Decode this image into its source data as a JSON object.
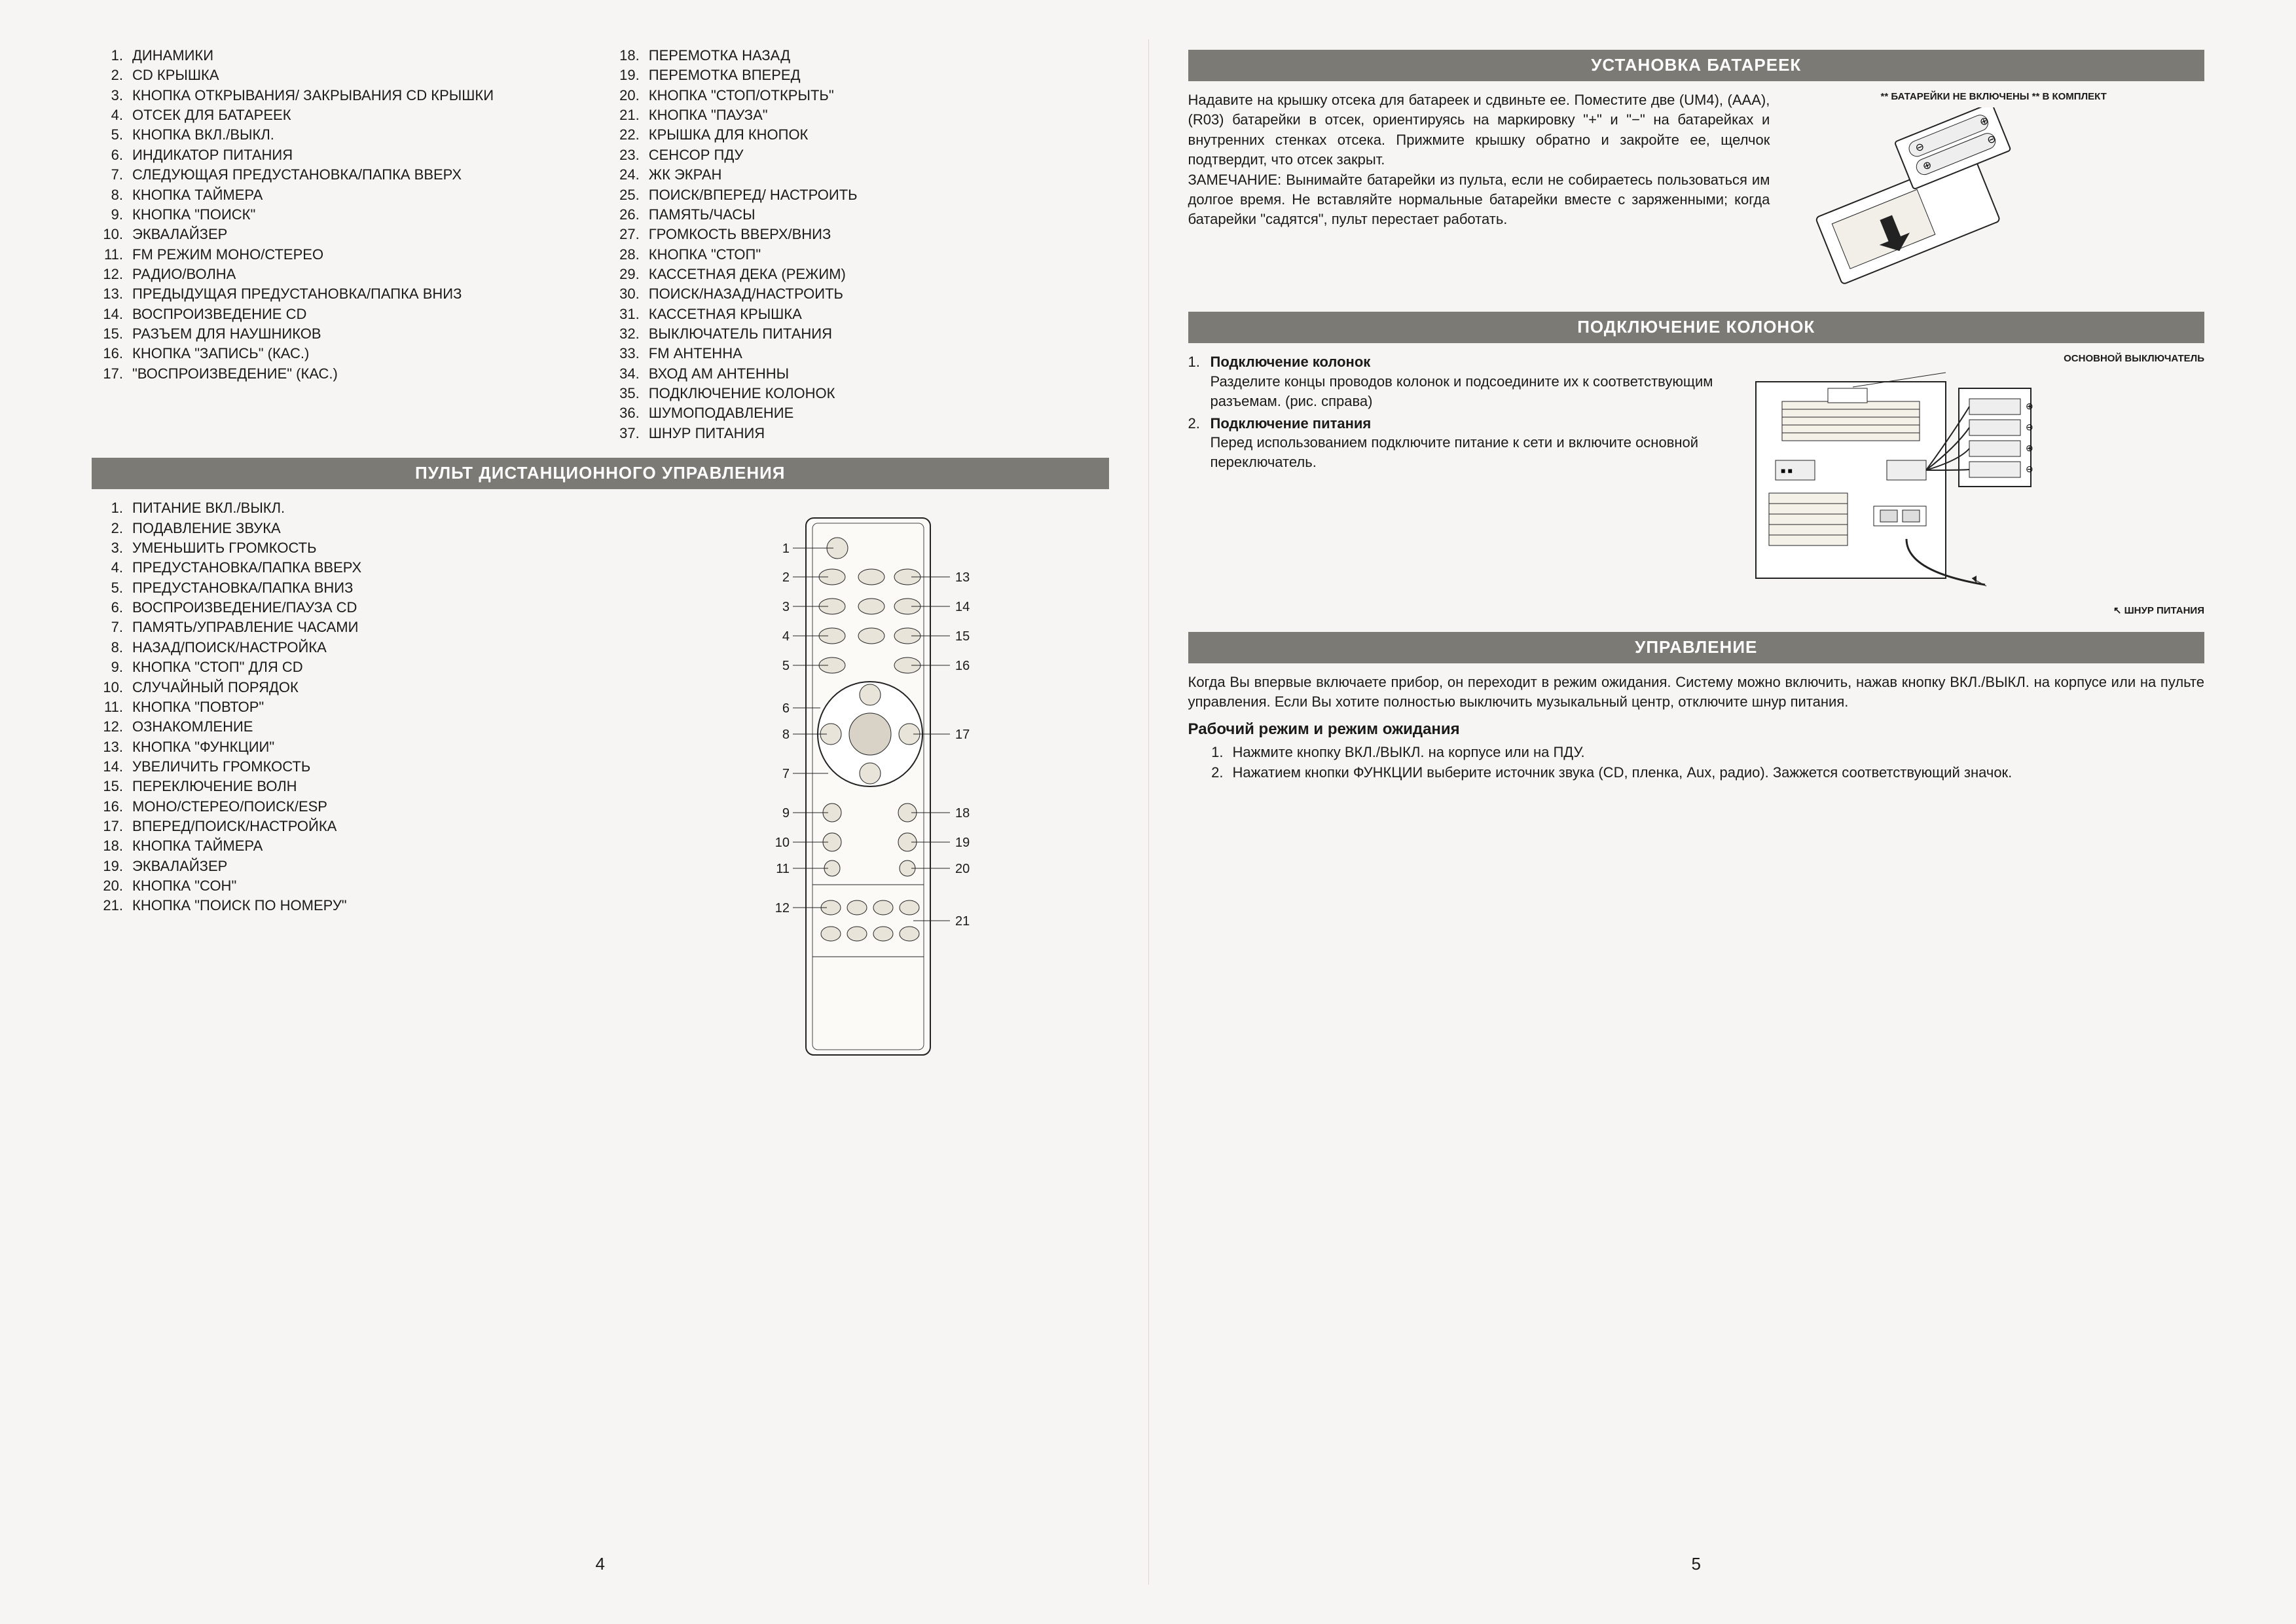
{
  "page_left_num": "4",
  "page_right_num": "5",
  "colors": {
    "banner_bg": "#7c7a74",
    "banner_text": "#ffffff",
    "page_bg": "#f6f5f3",
    "text": "#1a1a1a"
  },
  "main_list_left": [
    "ДИНАМИКИ",
    "CD КРЫШКА",
    "КНОПКА ОТКРЫВАНИЯ/ ЗАКРЫВАНИЯ CD КРЫШКИ",
    "ОТСЕК ДЛЯ БАТАРЕЕК",
    "КНОПКА ВКЛ./ВЫКЛ.",
    "ИНДИКАТОР ПИТАНИЯ",
    "СЛЕДУЮЩАЯ ПРЕДУСТАНОВКА/ПАПКА ВВЕРХ",
    "КНОПКА ТАЙМЕРА",
    "КНОПКА \"ПОИСК\"",
    "ЭКВАЛАЙЗЕР",
    "FM РЕЖИМ МОНО/СТЕРЕО",
    "РАДИО/ВОЛНА",
    "ПРЕДЫДУЩАЯ ПРЕДУСТАНОВКА/ПАПКА ВНИЗ",
    "ВОСПРОИЗВЕДЕНИЕ CD",
    "РАЗЪЕМ ДЛЯ НАУШНИКОВ",
    "КНОПКА \"ЗАПИСЬ\" (КАС.)",
    "\"ВОСПРОИЗВЕДЕНИЕ\" (КАС.)"
  ],
  "main_list_right": [
    "ПЕРЕМОТКА НАЗАД",
    "ПЕРЕМОТКА ВПЕРЕД",
    "КНОПКА \"СТОП/ОТКРЫТЬ\"",
    "КНОПКА \"ПАУЗА\"",
    "КРЫШКА ДЛЯ КНОПОК",
    "СЕНСОР ПДУ",
    "ЖК ЭКРАН",
    "ПОИСК/ВПЕРЕД/ НАСТРОИТЬ",
    "ПАМЯТЬ/ЧАСЫ",
    "ГРОМКОСТЬ ВВЕРХ/ВНИЗ",
    "КНОПКА \"СТОП\"",
    "КАССЕТНАЯ ДЕКА (РЕЖИМ)",
    "ПОИСК/НАЗАД/НАСТРОИТЬ",
    "КАССЕТНАЯ КРЫШКА",
    "ВЫКЛЮЧАТЕЛЬ ПИТАНИЯ",
    "FM АНТЕННА",
    "ВХОД АМ АНТЕННЫ",
    "ПОДКЛЮЧЕНИЕ КОЛОНОК",
    "ШУМОПОДАВЛЕНИЕ",
    "ШНУР ПИТАНИЯ"
  ],
  "banner_remote": "ПУЛЬТ ДИСТАНЦИОННОГО УПРАВЛЕНИЯ",
  "remote_list": [
    "ПИТАНИЕ ВКЛ./ВЫКЛ.",
    "ПОДАВЛЕНИЕ ЗВУКА",
    "УМЕНЬШИТЬ ГРОМКОСТЬ",
    "ПРЕДУСТАНОВКА/ПАПКА ВВЕРХ",
    "ПРЕДУСТАНОВКА/ПАПКА ВНИЗ",
    "ВОСПРОИЗВЕДЕНИЕ/ПАУЗА CD",
    "ПАМЯТЬ/УПРАВЛЕНИЕ ЧАСАМИ",
    "НАЗАД/ПОИСК/НАСТРОЙКА",
    "КНОПКА \"СТОП\" ДЛЯ CD",
    "СЛУЧАЙНЫЙ ПОРЯДОК",
    "КНОПКА \"ПОВТОР\"",
    "ОЗНАКОМЛЕНИЕ",
    "КНОПКА \"ФУНКЦИИ\"",
    "УВЕЛИЧИТЬ ГРОМКОСТЬ",
    "ПЕРЕКЛЮЧЕНИЕ ВОЛН",
    "МОНО/СТЕРЕО/ПОИСК/ESP",
    "ВПЕРЕД/ПОИСК/НАСТРОЙКА",
    "КНОПКА ТАЙМЕРА",
    "ЭКВАЛАЙЗЕР",
    "КНОПКА \"СОН\"",
    "КНОПКА \"ПОИСК ПО НОМЕРУ\""
  ],
  "remote_left_labels": [
    "1",
    "2",
    "3",
    "4",
    "5",
    "6",
    "7",
    "8",
    "9",
    "10",
    "11",
    "12"
  ],
  "remote_right_labels": [
    "13",
    "14",
    "15",
    "16",
    "17",
    "18",
    "19",
    "20",
    "21"
  ],
  "banner_battery": "УСТАНОВКА БАТАРЕЕК",
  "battery_text": "Надавите на крышку отсека для батареек и сдвиньте ее. Поместите две (UM4), (AAA), (R03) батарейки в отсек, ориентируясь на маркировку \"+\" и \"−\" на батарейках и внутренних стенках отсека. Прижмите крышку обратно и закройте ее, щелчок подтвердит, что отсек закрыт.",
  "battery_note": "ЗАМЕЧАНИЕ: Вынимайте батарейки из пульта, если не собираетесь пользоваться им долгое время. Не вставляйте нормальные батарейки вместе с заряженными; когда батарейки \"садятся\", пульт перестает работать.",
  "battery_caption": "** БАТАРЕЙКИ НЕ ВКЛЮЧЕНЫ ** В КОМПЛЕКТ",
  "banner_speakers": "ПОДКЛЮЧЕНИЕ КОЛОНОК",
  "speakers_items": [
    {
      "n": "1.",
      "label": "Подключение колонок",
      "text": "Разделите концы проводов колонок и подсоедините их к соответствующим разъемам. (рис. справа)"
    },
    {
      "n": "2.",
      "label": "Подключение питания",
      "text": "Перед использованием под­ключите питание к сети и включите основной пере­ключатель."
    }
  ],
  "speaker_caption_top": "ОСНОВНОЙ ВЫКЛЮЧАТЕЛЬ",
  "speaker_caption_bottom": "ШНУР ПИТАНИЯ",
  "banner_control": "УПРАВЛЕНИЕ",
  "control_text": "Когда Вы впервые включаете прибор, он переходит в режим ожидания. Систему можно включить, нажав кнопку ВКЛ./ВЫКЛ. на корпусе или на пульте управления. Если Вы хотите полностью выключить музыкальный центр, отключите шнур питания.",
  "control_sub": "Рабочий режим и режим ожидания",
  "control_steps": [
    "Нажмите кнопку ВКЛ./ВЫКЛ. на корпусе или на ПДУ.",
    "Нажатием кнопки ФУНКЦИИ выберите источник звука (CD, пленка, Aux, радио). Зажжется соответствующий значок."
  ]
}
